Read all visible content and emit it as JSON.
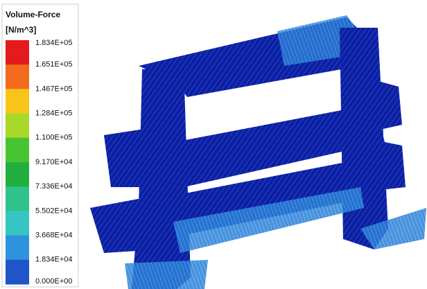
{
  "legend": {
    "title": "Volume-Force",
    "unit": "[N/m^3]",
    "labels": [
      "1.834E+05",
      "1.651E+05",
      "1.467E+05",
      "1.284E+05",
      "1.100E+05",
      "9.170E+04",
      "7.336E+04",
      "5.502E+04",
      "3.668E+04",
      "1.834E+04",
      "0.000E+00"
    ],
    "colors": [
      "#e41a1c",
      "#f26b1d",
      "#f9c51b",
      "#a7d82a",
      "#48c431",
      "#22ae3f",
      "#2fc28a",
      "#35c6c4",
      "#2f92dc",
      "#1f55c8",
      "#0a1ea8"
    ]
  }
}
